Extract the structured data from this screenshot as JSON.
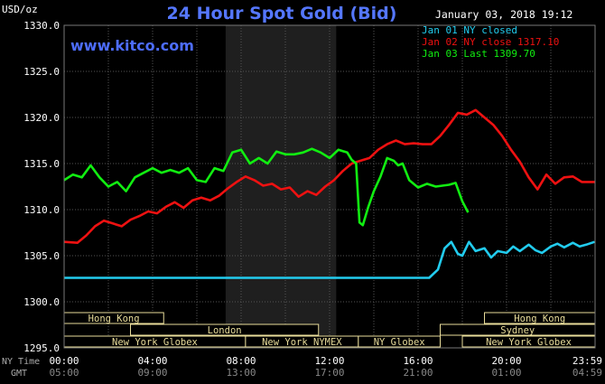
{
  "header": {
    "title": "24 Hour Spot Gold (Bid)",
    "units": "USD/oz",
    "timestamp": "January 03, 2018 19:12",
    "brand": "www.kitco.com"
  },
  "legend": [
    {
      "label": "Jan 01 NY closed",
      "color": "#22ccee"
    },
    {
      "label": "Jan 02 NY close 1317.10",
      "color": "#ee1111"
    },
    {
      "label": "Jan 03 Last 1309.70",
      "color": "#11ee11"
    }
  ],
  "axis": {
    "x_row_labels": [
      "NY Time",
      "GMT"
    ],
    "ny_times": [
      "00:00",
      "04:00",
      "08:00",
      "12:00",
      "16:00",
      "20:00",
      "23:59"
    ],
    "gmt_times": [
      "05:00",
      "09:00",
      "13:00",
      "17:00",
      "21:00",
      "01:00",
      "04:59"
    ]
  },
  "sessions": [
    {
      "name": "Hong Kong",
      "start": 0,
      "end": 4.5,
      "row": 0
    },
    {
      "name": "Hong Kong",
      "start": 19,
      "end": 24,
      "row": 0
    },
    {
      "name": "London",
      "start": 3,
      "end": 11.5,
      "row": 1
    },
    {
      "name": "Sydney",
      "start": 17,
      "end": 24,
      "row": 1
    },
    {
      "name": "New York Globex",
      "start": 0,
      "end": 8.2,
      "row": 2
    },
    {
      "name": "New York NYMEX",
      "start": 8.2,
      "end": 13.3,
      "row": 2
    },
    {
      "name": "NY Globex",
      "start": 13.3,
      "end": 17,
      "row": 2
    },
    {
      "name": "New York Globex",
      "start": 18,
      "end": 24,
      "row": 2
    }
  ],
  "chart_data": {
    "type": "line",
    "title": "24 Hour Spot Gold (Bid)",
    "ylabel": "USD/oz",
    "xlim": [
      0,
      24
    ],
    "ylim": [
      1295,
      1330
    ],
    "y_ticks": [
      1295.0,
      1300.0,
      1305.0,
      1310.0,
      1315.0,
      1320.0,
      1325.0,
      1330.0
    ],
    "y_tick_labels": [
      "1295.0",
      "1300.0",
      "1305.0",
      "1310.0",
      "1315.0",
      "1320.0",
      "1325.0",
      "1330.0"
    ],
    "x_ticks": [
      0,
      4,
      8,
      12,
      16,
      20,
      23.98
    ],
    "shaded_range": [
      7.3,
      12.3
    ],
    "grid": true,
    "series": [
      {
        "name": "Jan 01 NY closed",
        "color": "#22ccee",
        "x": [
          0,
          16.5,
          16.9,
          17.2,
          17.5,
          17.8,
          18.0,
          18.3,
          18.6,
          19.0,
          19.3,
          19.6,
          20.0,
          20.3,
          20.6,
          21.0,
          21.3,
          21.6,
          22.0,
          22.3,
          22.6,
          23.0,
          23.3,
          23.6,
          23.98
        ],
        "y": [
          1302.6,
          1302.6,
          1303.5,
          1305.8,
          1306.5,
          1305.2,
          1305.0,
          1306.5,
          1305.5,
          1305.8,
          1304.8,
          1305.5,
          1305.3,
          1306.0,
          1305.5,
          1306.2,
          1305.6,
          1305.3,
          1306.0,
          1306.3,
          1305.9,
          1306.4,
          1306.0,
          1306.2,
          1306.5
        ]
      },
      {
        "name": "Jan 02 NY close 1317.10",
        "color": "#ee1111",
        "x": [
          0,
          0.6,
          1.0,
          1.4,
          1.8,
          2.2,
          2.6,
          3.0,
          3.4,
          3.8,
          4.2,
          4.6,
          5.0,
          5.4,
          5.8,
          6.2,
          6.6,
          7.0,
          7.4,
          7.8,
          8.2,
          8.6,
          9.0,
          9.4,
          9.8,
          10.2,
          10.6,
          11.0,
          11.4,
          11.8,
          12.2,
          12.6,
          13.0,
          13.4,
          13.8,
          14.2,
          14.6,
          15.0,
          15.4,
          15.8,
          16.2,
          16.6,
          17.0,
          17.4,
          17.8,
          18.2,
          18.6,
          19.0,
          19.4,
          19.8,
          20.2,
          20.6,
          21.0,
          21.4,
          21.8,
          22.2,
          22.6,
          23.0,
          23.4,
          23.98
        ],
        "y": [
          1306.5,
          1306.4,
          1307.2,
          1308.2,
          1308.8,
          1308.5,
          1308.2,
          1308.9,
          1309.3,
          1309.8,
          1309.6,
          1310.3,
          1310.8,
          1310.2,
          1311.0,
          1311.3,
          1311.0,
          1311.5,
          1312.3,
          1313.0,
          1313.6,
          1313.2,
          1312.6,
          1312.8,
          1312.2,
          1312.4,
          1311.4,
          1312.0,
          1311.6,
          1312.5,
          1313.2,
          1314.2,
          1315.0,
          1315.3,
          1315.6,
          1316.5,
          1317.1,
          1317.5,
          1317.1,
          1317.2,
          1317.1,
          1317.1,
          1318.0,
          1319.2,
          1320.5,
          1320.3,
          1320.8,
          1320.0,
          1319.2,
          1318.0,
          1316.5,
          1315.2,
          1313.5,
          1312.2,
          1313.8,
          1312.8,
          1313.5,
          1313.6,
          1313.0,
          1313.0
        ]
      },
      {
        "name": "Jan 03 Last 1309.70",
        "color": "#11ee11",
        "x": [
          0,
          0.4,
          0.8,
          1.2,
          1.6,
          2.0,
          2.4,
          2.8,
          3.2,
          3.6,
          4.0,
          4.4,
          4.8,
          5.2,
          5.6,
          6.0,
          6.4,
          6.8,
          7.2,
          7.6,
          8.0,
          8.4,
          8.8,
          9.2,
          9.6,
          10.0,
          10.4,
          10.8,
          11.2,
          11.6,
          12.0,
          12.4,
          12.8,
          13.0,
          13.2,
          13.35,
          13.5,
          13.75,
          14.0,
          14.3,
          14.6,
          14.9,
          15.1,
          15.3,
          15.6,
          16.0,
          16.4,
          16.8,
          17.1,
          17.4,
          17.7,
          18.0,
          18.26
        ],
        "y": [
          1313.2,
          1313.8,
          1313.5,
          1314.8,
          1313.5,
          1312.5,
          1313.0,
          1312.0,
          1313.5,
          1314.0,
          1314.5,
          1314.0,
          1314.3,
          1314.0,
          1314.5,
          1313.2,
          1313.0,
          1314.5,
          1314.2,
          1316.2,
          1316.5,
          1315.0,
          1315.6,
          1315.0,
          1316.3,
          1316.0,
          1316.0,
          1316.2,
          1316.6,
          1316.2,
          1315.6,
          1316.5,
          1316.2,
          1315.4,
          1315.0,
          1308.6,
          1308.3,
          1310.3,
          1312.0,
          1313.6,
          1315.6,
          1315.3,
          1314.8,
          1315.0,
          1313.2,
          1312.4,
          1312.8,
          1312.5,
          1312.6,
          1312.7,
          1312.9,
          1310.9,
          1309.7
        ]
      }
    ]
  }
}
